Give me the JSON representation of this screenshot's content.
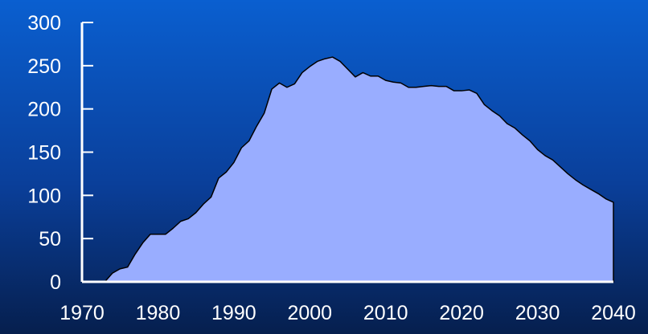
{
  "chart_data": {
    "type": "area",
    "title": "",
    "xlabel": "",
    "ylabel": "",
    "xlim": [
      1970,
      2040
    ],
    "ylim": [
      0,
      300
    ],
    "grid": false,
    "x_ticks": [
      "1970",
      "1980",
      "1990",
      "2000",
      "2010",
      "2020",
      "2030",
      "2040"
    ],
    "y_ticks": [
      "0",
      "50",
      "100",
      "150",
      "200",
      "250",
      "300"
    ],
    "colors": {
      "fill": "#99adff",
      "outline": "#000000",
      "axis": "#ffffff",
      "text": "#ffffff"
    },
    "series": [
      {
        "x": [
          1973,
          1974,
          1975,
          1976,
          1977,
          1978,
          1979,
          1980,
          1981,
          1982,
          1983,
          1984,
          1985,
          1986,
          1987,
          1988,
          1989,
          1990,
          1991,
          1992,
          1993,
          1994,
          1995,
          1996,
          1997,
          1998,
          1999,
          2000,
          2001,
          2002,
          2003,
          2004,
          2005,
          2006,
          2007,
          2008,
          2009,
          2010,
          2011,
          2012,
          2013,
          2014,
          2015,
          2016,
          2017,
          2018,
          2019,
          2020,
          2021,
          2022,
          2023,
          2024,
          2025,
          2026,
          2027,
          2028,
          2029,
          2030,
          2031,
          2032,
          2033,
          2034,
          2035,
          2036,
          2037,
          2038,
          2039,
          2040
        ],
        "values": [
          0,
          10,
          15,
          17,
          32,
          45,
          55,
          55,
          55,
          62,
          70,
          73,
          80,
          90,
          98,
          120,
          127,
          138,
          155,
          163,
          180,
          195,
          223,
          230,
          225,
          229,
          242,
          249,
          255,
          258,
          260,
          255,
          246,
          237,
          242,
          238,
          238,
          233,
          231,
          230,
          225,
          225,
          226,
          227,
          226,
          226,
          221,
          221,
          222,
          218,
          205,
          198,
          192,
          183,
          178,
          170,
          163,
          153,
          146,
          141,
          133,
          125,
          118,
          112,
          107,
          102,
          96,
          92
        ]
      }
    ]
  }
}
